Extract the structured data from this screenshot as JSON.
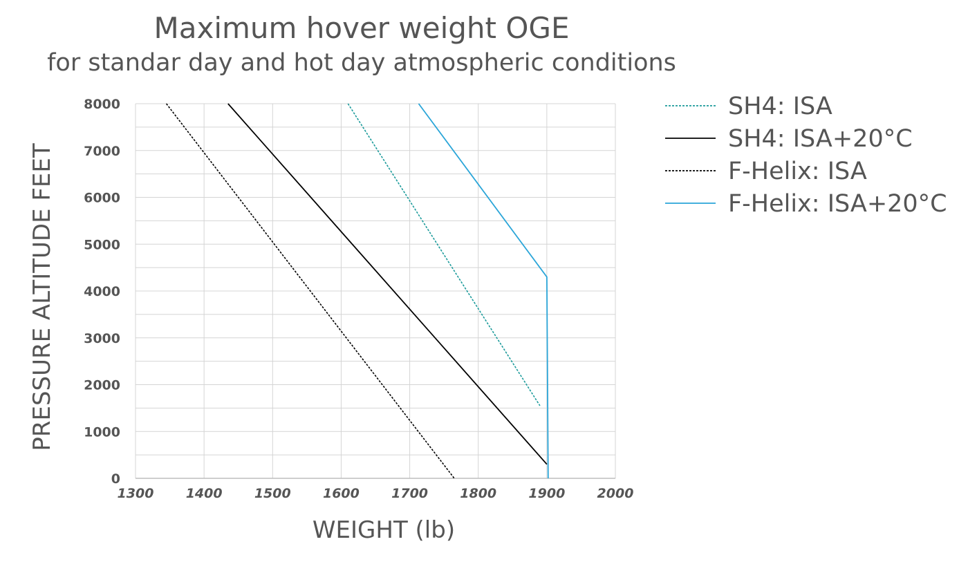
{
  "chart_data": {
    "type": "line",
    "title": "Maximum hover weight OGE",
    "subtitle": "for standar day and hot day atmospheric conditions",
    "xlabel": "WEIGHT  (lb)",
    "ylabel": "PRESSURE ALTITUDE FEET",
    "xlim": [
      1300,
      2000
    ],
    "ylim": [
      0,
      8000
    ],
    "x_ticks": [
      "1300",
      "1400",
      "1500",
      "1600",
      "1700",
      "1800",
      "1900",
      "2000"
    ],
    "y_ticks": [
      "0",
      "1000",
      "2000",
      "3000",
      "4000",
      "5000",
      "6000",
      "7000",
      "8000"
    ],
    "grid": true,
    "legend_position": "right",
    "series": [
      {
        "name": "SH4: ISA",
        "color": "#1a9a9a",
        "dash": "dotted",
        "points": [
          [
            1610,
            8000
          ],
          [
            1890,
            1550
          ]
        ]
      },
      {
        "name": "SH4: ISA+20°C",
        "color": "#000000",
        "dash": "solid",
        "points": [
          [
            1435,
            8000
          ],
          [
            1900,
            300
          ]
        ]
      },
      {
        "name": "F-Helix: ISA",
        "color": "#000000",
        "dash": "dotted",
        "points": [
          [
            1345,
            8000
          ],
          [
            1765,
            0
          ]
        ]
      },
      {
        "name": "F-Helix: ISA+20°C",
        "color": "#2aa5d8",
        "dash": "solid",
        "points": [
          [
            1713,
            8000
          ],
          [
            1900,
            4300
          ],
          [
            1902,
            0
          ]
        ]
      }
    ]
  }
}
